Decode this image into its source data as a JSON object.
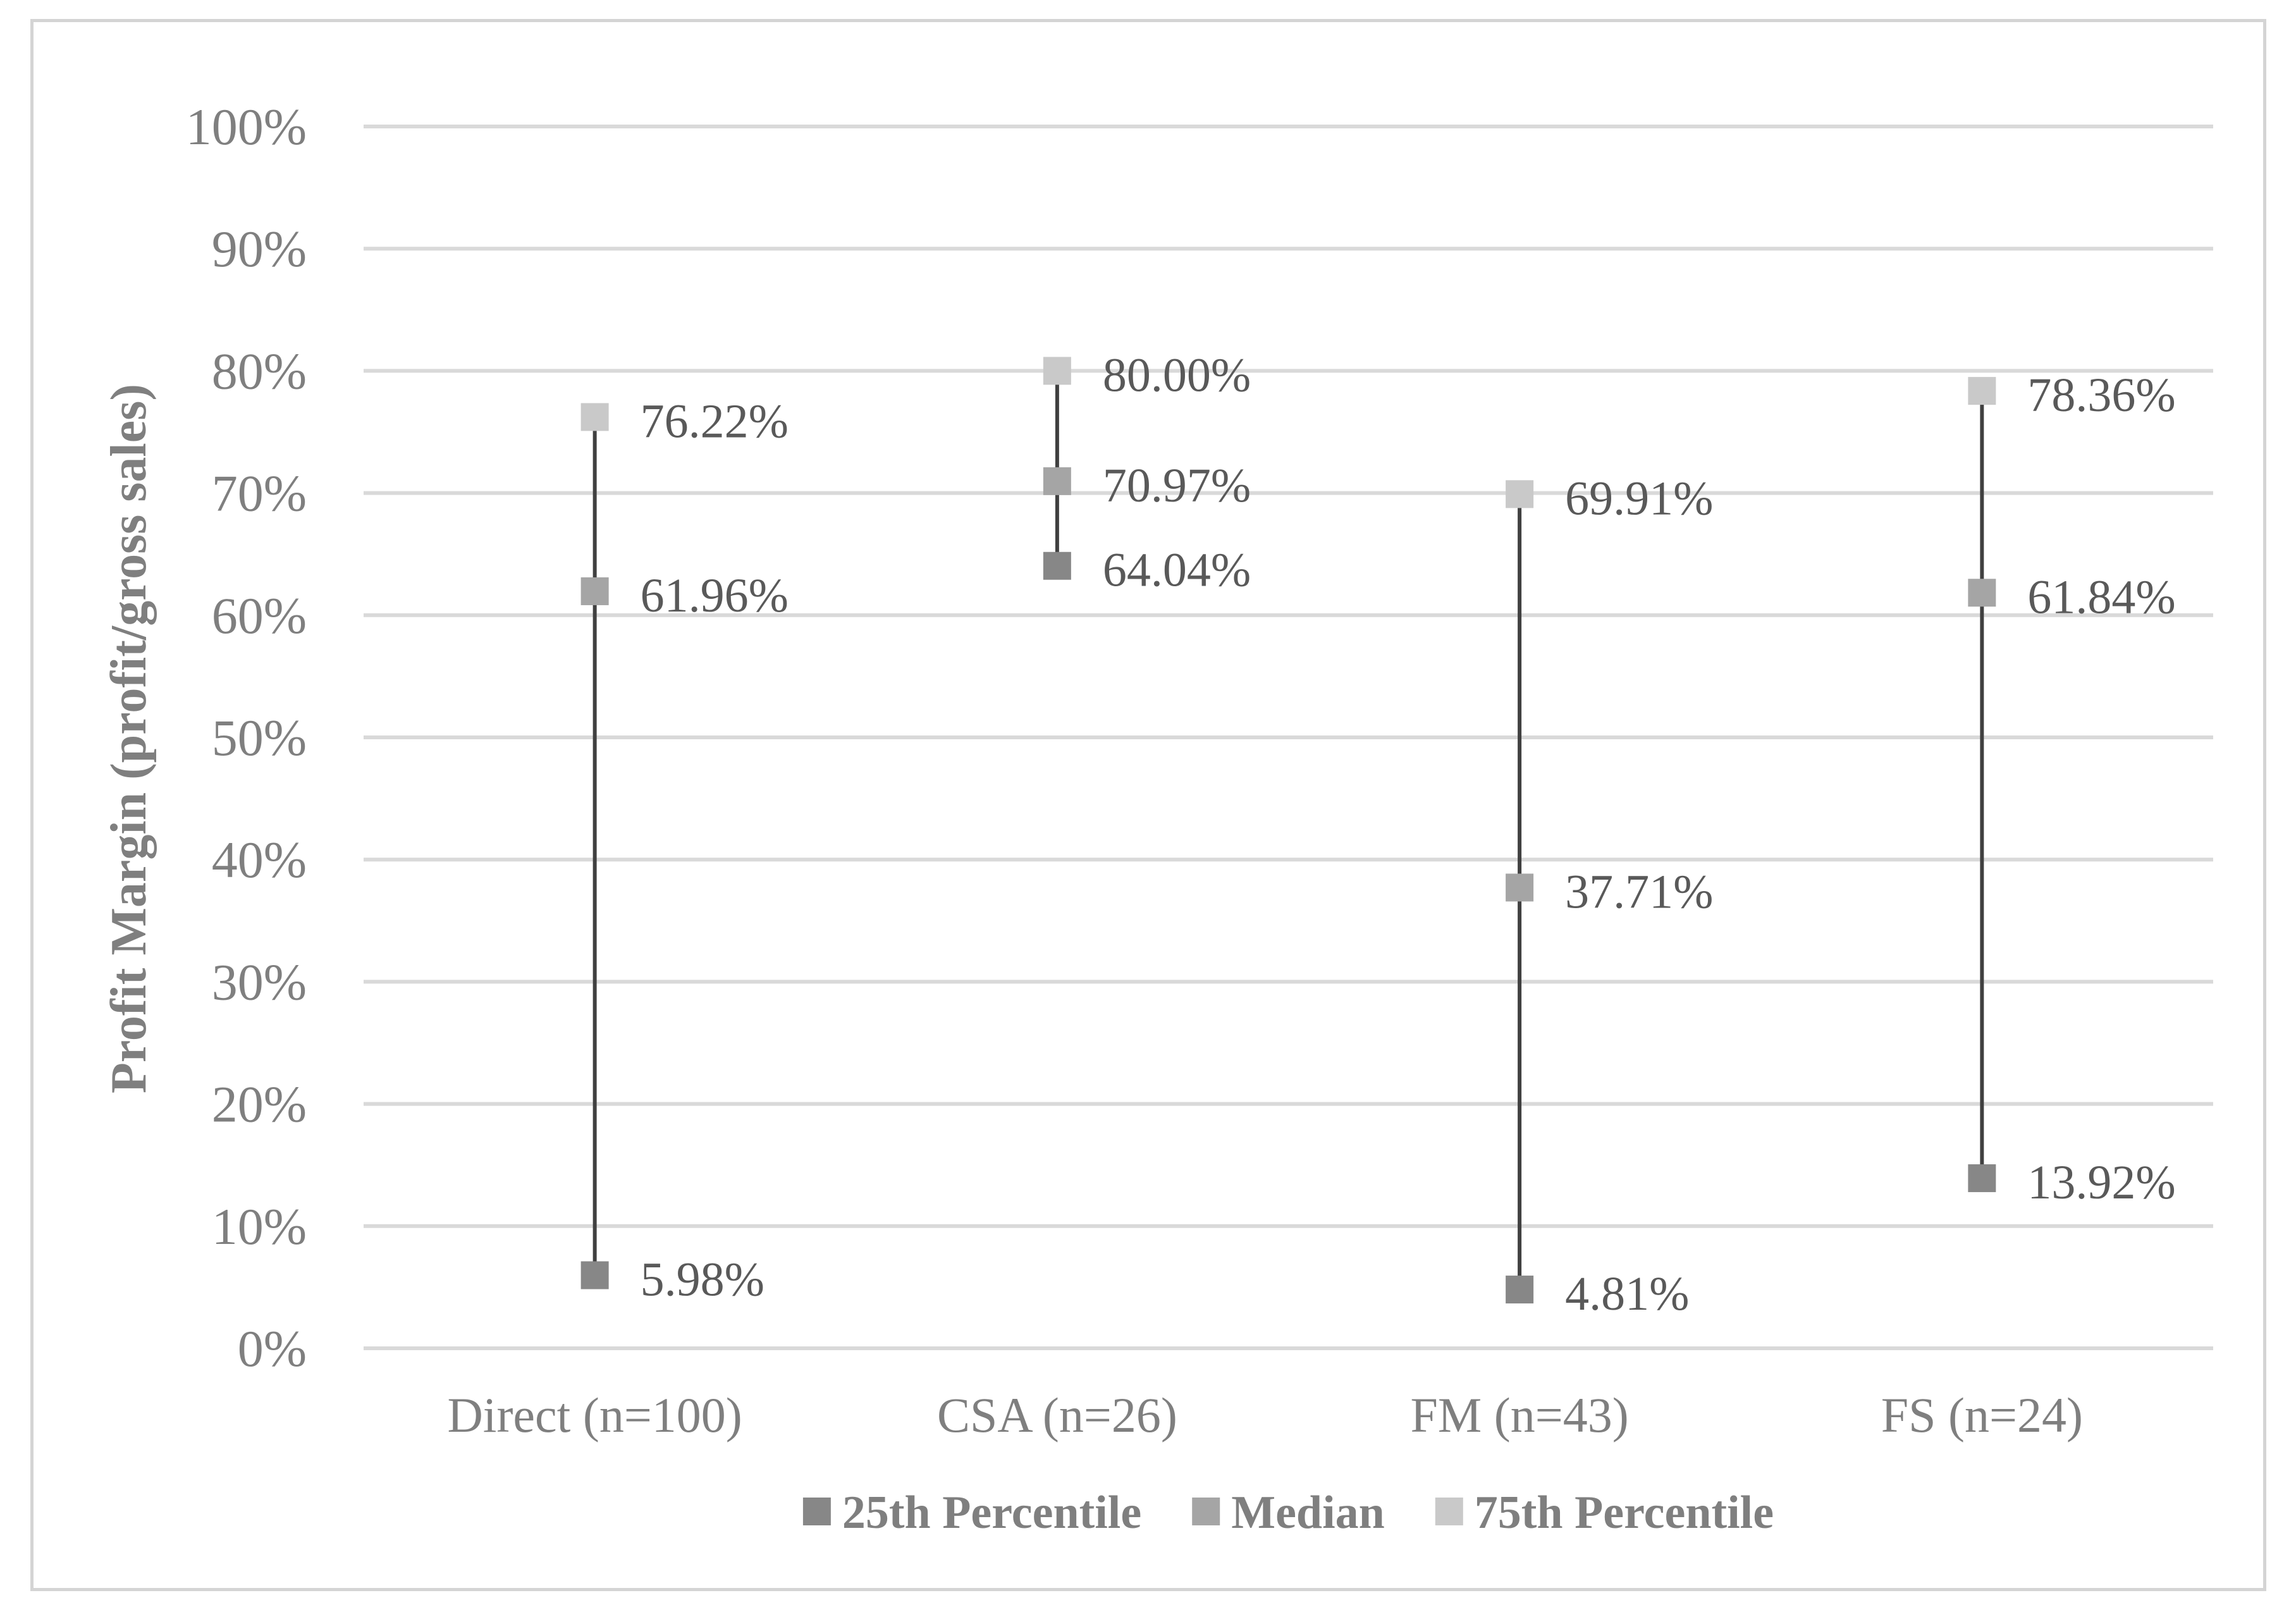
{
  "chart_data": {
    "type": "scatter",
    "ylabel": "Profit Margin (profit/gross sales)",
    "ylim": [
      0,
      100
    ],
    "y_ticks": [
      "0%",
      "10%",
      "20%",
      "30%",
      "40%",
      "50%",
      "60%",
      "70%",
      "80%",
      "90%",
      "100%"
    ],
    "categories": [
      "Direct (n=100)",
      "CSA (n=26)",
      "FM (n=43)",
      "FS (n=24)"
    ],
    "series": [
      {
        "name": "25th Percentile",
        "color": "#878787",
        "values": [
          5.98,
          64.04,
          4.81,
          13.92
        ],
        "labels": [
          "5.98%",
          "64.04%",
          "4.81%",
          "13.92%"
        ]
      },
      {
        "name": "Median",
        "color": "#a5a5a5",
        "values": [
          61.96,
          70.97,
          37.71,
          61.84
        ],
        "labels": [
          "61.96%",
          "70.97%",
          "37.71%",
          "61.84%"
        ]
      },
      {
        "name": "75th Percentile",
        "color": "#c9c9c9",
        "values": [
          76.22,
          80.0,
          69.91,
          78.36
        ],
        "labels": [
          "76.22%",
          "80.00%",
          "69.91%",
          "78.36%"
        ]
      }
    ],
    "range_line_color": "#404040",
    "gridline_color": "#d9d9d9",
    "grid": true,
    "legend_position": "bottom"
  }
}
